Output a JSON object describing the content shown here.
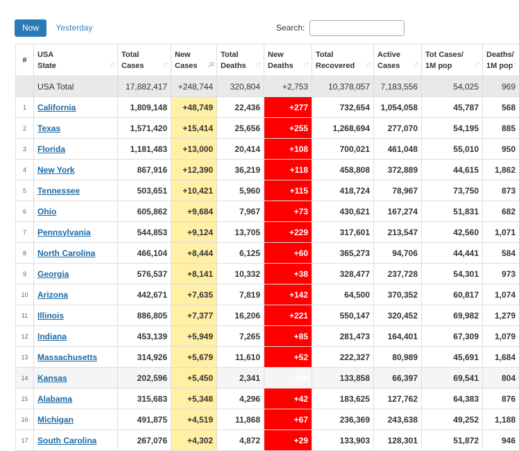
{
  "toolbar": {
    "now_label": "Now",
    "yesterday_label": "Yesterday",
    "search_label": "Search:",
    "search_value": ""
  },
  "colors": {
    "accent": "#2a7ab8",
    "new_cases_bg": "#fff0a6",
    "new_deaths_bg": "#ff0000"
  },
  "headers": [
    {
      "key": "idx",
      "lines": [
        "#"
      ]
    },
    {
      "key": "state",
      "lines": [
        "USA",
        "State"
      ]
    },
    {
      "key": "total_cases",
      "lines": [
        "Total",
        "Cases"
      ]
    },
    {
      "key": "new_cases",
      "lines": [
        "New",
        "Cases"
      ]
    },
    {
      "key": "total_deaths",
      "lines": [
        "Total",
        "Deaths"
      ]
    },
    {
      "key": "new_deaths",
      "lines": [
        "New",
        "Deaths"
      ]
    },
    {
      "key": "total_recovered",
      "lines": [
        "Total",
        "Recovered"
      ]
    },
    {
      "key": "active_cases",
      "lines": [
        "Active",
        "Cases"
      ]
    },
    {
      "key": "tot_cases_1m",
      "lines": [
        "Tot Cases/",
        "1M pop"
      ]
    },
    {
      "key": "deaths_1m",
      "lines": [
        "Deaths/",
        "1M pop"
      ]
    }
  ],
  "total_row": {
    "state": "USA Total",
    "total_cases": "17,882,417",
    "new_cases": "+248,744",
    "total_deaths": "320,804",
    "new_deaths": "+2,753",
    "total_recovered": "10,378,057",
    "active_cases": "7,183,556",
    "tot_cases_1m": "54,025",
    "deaths_1m": "969"
  },
  "rows": [
    {
      "idx": "1",
      "state": "California",
      "total_cases": "1,809,148",
      "new_cases": "+48,749",
      "total_deaths": "22,436",
      "new_deaths": "+277",
      "total_recovered": "732,654",
      "active_cases": "1,054,058",
      "tot_cases_1m": "45,787",
      "deaths_1m": "568"
    },
    {
      "idx": "2",
      "state": "Texas",
      "total_cases": "1,571,420",
      "new_cases": "+15,414",
      "total_deaths": "25,656",
      "new_deaths": "+255",
      "total_recovered": "1,268,694",
      "active_cases": "277,070",
      "tot_cases_1m": "54,195",
      "deaths_1m": "885"
    },
    {
      "idx": "3",
      "state": "Florida",
      "total_cases": "1,181,483",
      "new_cases": "+13,000",
      "total_deaths": "20,414",
      "new_deaths": "+108",
      "total_recovered": "700,021",
      "active_cases": "461,048",
      "tot_cases_1m": "55,010",
      "deaths_1m": "950"
    },
    {
      "idx": "4",
      "state": "New York",
      "total_cases": "867,916",
      "new_cases": "+12,390",
      "total_deaths": "36,219",
      "new_deaths": "+118",
      "total_recovered": "458,808",
      "active_cases": "372,889",
      "tot_cases_1m": "44,615",
      "deaths_1m": "1,862"
    },
    {
      "idx": "5",
      "state": "Tennessee",
      "total_cases": "503,651",
      "new_cases": "+10,421",
      "total_deaths": "5,960",
      "new_deaths": "+115",
      "total_recovered": "418,724",
      "active_cases": "78,967",
      "tot_cases_1m": "73,750",
      "deaths_1m": "873"
    },
    {
      "idx": "6",
      "state": "Ohio",
      "total_cases": "605,862",
      "new_cases": "+9,684",
      "total_deaths": "7,967",
      "new_deaths": "+73",
      "total_recovered": "430,621",
      "active_cases": "167,274",
      "tot_cases_1m": "51,831",
      "deaths_1m": "682"
    },
    {
      "idx": "7",
      "state": "Pennsylvania",
      "total_cases": "544,853",
      "new_cases": "+9,124",
      "total_deaths": "13,705",
      "new_deaths": "+229",
      "total_recovered": "317,601",
      "active_cases": "213,547",
      "tot_cases_1m": "42,560",
      "deaths_1m": "1,071"
    },
    {
      "idx": "8",
      "state": "North Carolina",
      "total_cases": "466,104",
      "new_cases": "+8,444",
      "total_deaths": "6,125",
      "new_deaths": "+60",
      "total_recovered": "365,273",
      "active_cases": "94,706",
      "tot_cases_1m": "44,441",
      "deaths_1m": "584"
    },
    {
      "idx": "9",
      "state": "Georgia",
      "total_cases": "576,537",
      "new_cases": "+8,141",
      "total_deaths": "10,332",
      "new_deaths": "+38",
      "total_recovered": "328,477",
      "active_cases": "237,728",
      "tot_cases_1m": "54,301",
      "deaths_1m": "973"
    },
    {
      "idx": "10",
      "state": "Arizona",
      "total_cases": "442,671",
      "new_cases": "+7,635",
      "total_deaths": "7,819",
      "new_deaths": "+142",
      "total_recovered": "64,500",
      "active_cases": "370,352",
      "tot_cases_1m": "60,817",
      "deaths_1m": "1,074"
    },
    {
      "idx": "11",
      "state": "Illinois",
      "total_cases": "886,805",
      "new_cases": "+7,377",
      "total_deaths": "16,206",
      "new_deaths": "+221",
      "total_recovered": "550,147",
      "active_cases": "320,452",
      "tot_cases_1m": "69,982",
      "deaths_1m": "1,279"
    },
    {
      "idx": "12",
      "state": "Indiana",
      "total_cases": "453,139",
      "new_cases": "+5,949",
      "total_deaths": "7,265",
      "new_deaths": "+85",
      "total_recovered": "281,473",
      "active_cases": "164,401",
      "tot_cases_1m": "67,309",
      "deaths_1m": "1,079"
    },
    {
      "idx": "13",
      "state": "Massachusetts",
      "total_cases": "314,926",
      "new_cases": "+5,679",
      "total_deaths": "11,610",
      "new_deaths": "+52",
      "total_recovered": "222,327",
      "active_cases": "80,989",
      "tot_cases_1m": "45,691",
      "deaths_1m": "1,684"
    },
    {
      "idx": "14",
      "state": "Kansas",
      "total_cases": "202,596",
      "new_cases": "+5,450",
      "total_deaths": "2,341",
      "new_deaths": "+88",
      "total_recovered": "133,858",
      "active_cases": "66,397",
      "tot_cases_1m": "69,541",
      "deaths_1m": "804"
    },
    {
      "idx": "15",
      "state": "Alabama",
      "total_cases": "315,683",
      "new_cases": "+5,348",
      "total_deaths": "4,296",
      "new_deaths": "+42",
      "total_recovered": "183,625",
      "active_cases": "127,762",
      "tot_cases_1m": "64,383",
      "deaths_1m": "876"
    },
    {
      "idx": "16",
      "state": "Michigan",
      "total_cases": "491,875",
      "new_cases": "+4,519",
      "total_deaths": "11,868",
      "new_deaths": "+67",
      "total_recovered": "236,369",
      "active_cases": "243,638",
      "tot_cases_1m": "49,252",
      "deaths_1m": "1,188"
    },
    {
      "idx": "17",
      "state": "South Carolina",
      "total_cases": "267,076",
      "new_cases": "+4,302",
      "total_deaths": "4,872",
      "new_deaths": "+29",
      "total_recovered": "133,903",
      "active_cases": "128,301",
      "tot_cases_1m": "51,872",
      "deaths_1m": "946"
    }
  ]
}
